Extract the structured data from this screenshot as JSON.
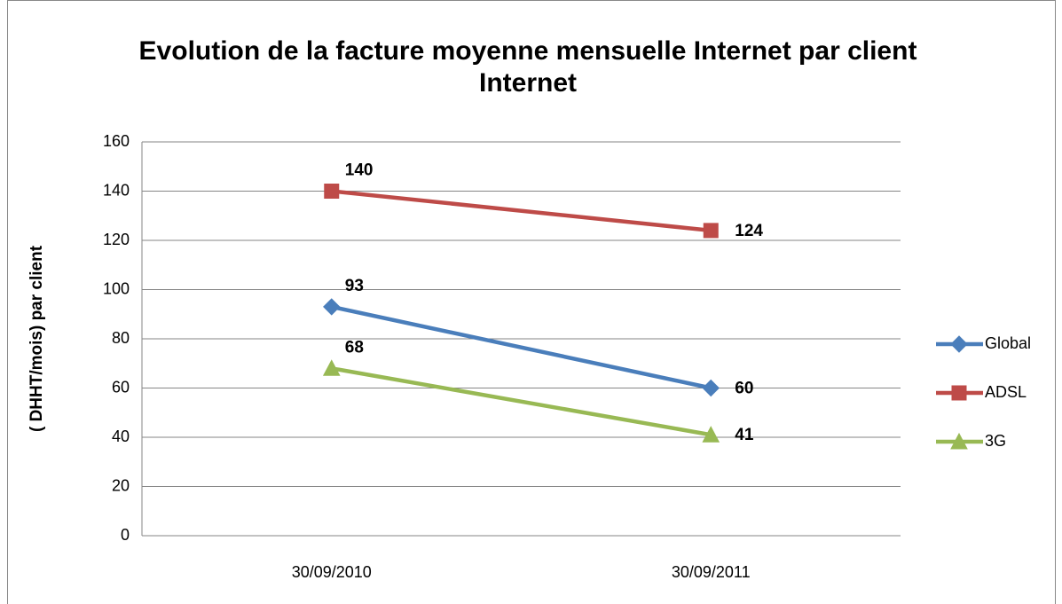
{
  "chart_data": {
    "type": "line",
    "title": "Evolution de la facture moyenne mensuelle Internet par client Internet",
    "y_label": "( DHHT/mois) par client",
    "categories": [
      "30/09/2010",
      "30/09/2011"
    ],
    "series": [
      {
        "name": "Global",
        "color": "#4a7ebb",
        "marker": "diamond",
        "values": [
          93,
          60
        ]
      },
      {
        "name": "ADSL",
        "color": "#be4b48",
        "marker": "square",
        "values": [
          140,
          124
        ]
      },
      {
        "name": "3G",
        "color": "#98b954",
        "marker": "triangle",
        "values": [
          68,
          41
        ]
      }
    ],
    "ylim": [
      0,
      160
    ],
    "yticks": [
      0,
      20,
      40,
      60,
      80,
      100,
      120,
      140,
      160
    ],
    "grid": true,
    "legend": "right"
  }
}
